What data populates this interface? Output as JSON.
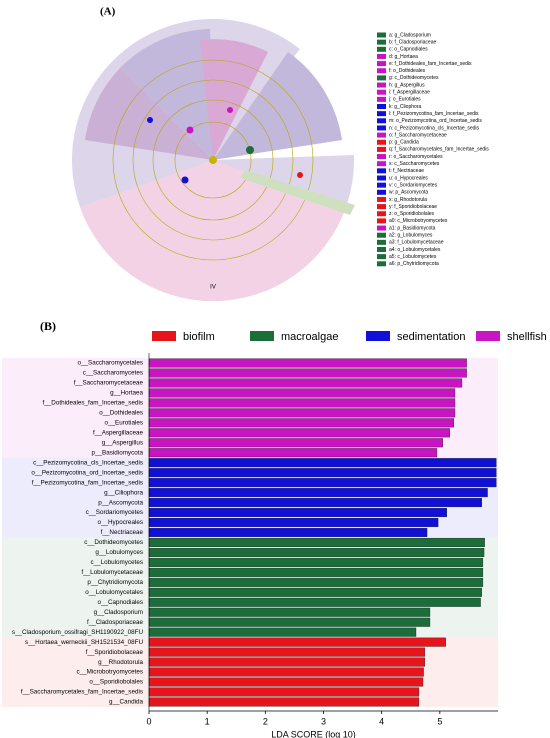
{
  "panel_a": {
    "label": "(A)",
    "clade_label": "IV",
    "legend": [
      {
        "label": "a: g_Cladosporium",
        "color": "#1b6e3a"
      },
      {
        "label": "b: f_Cladosporiaceae",
        "color": "#1b6e3a"
      },
      {
        "label": "c: o_Capnodiales",
        "color": "#1b6e3a"
      },
      {
        "label": "d: g_Hortaea",
        "color": "#c914c4"
      },
      {
        "label": "e: f_Dothideales_fam_Incertae_sedis",
        "color": "#c914c4"
      },
      {
        "label": "f: o_Dothideales",
        "color": "#c914c4"
      },
      {
        "label": "g: c_Dothideomycetes",
        "color": "#1b6e3a"
      },
      {
        "label": "h: g_Aspergillus",
        "color": "#c914c4"
      },
      {
        "label": "i: f_Aspergillaceae",
        "color": "#c914c4"
      },
      {
        "label": "j: o_Eurotiales",
        "color": "#c914c4"
      },
      {
        "label": "k: g_Cliophora",
        "color": "#1010d8"
      },
      {
        "label": "l: f_Pezizomycotina_fam_Incertae_sedis",
        "color": "#1010d8"
      },
      {
        "label": "m: o_Pezizomycotina_ord_Incertae_sedis",
        "color": "#1010d8"
      },
      {
        "label": "n: c_Pezizomycotina_cls_Incertae_sedis",
        "color": "#1010d8"
      },
      {
        "label": "o: f_Saccharomycetaceae",
        "color": "#c914c4"
      },
      {
        "label": "p: g_Candida",
        "color": "#e8141b"
      },
      {
        "label": "q: f_Saccharomycetales_fam_Incertae_sedis",
        "color": "#e8141b"
      },
      {
        "label": "r: o_Saccharomycetales",
        "color": "#c914c4"
      },
      {
        "label": "s: c_Saccharomycetes",
        "color": "#c914c4"
      },
      {
        "label": "t: f_Nectriaceae",
        "color": "#1010d8"
      },
      {
        "label": "u: o_Hypocreales",
        "color": "#1010d8"
      },
      {
        "label": "v: c_Sordariomycetes",
        "color": "#1010d8"
      },
      {
        "label": "w: p_Ascomycota",
        "color": "#1010d8"
      },
      {
        "label": "x: g_Rhodotorula",
        "color": "#e8141b"
      },
      {
        "label": "y: f_Sporidiobolaceae",
        "color": "#e8141b"
      },
      {
        "label": "z: o_Sporidiobolales",
        "color": "#e8141b"
      },
      {
        "label": "a0: c_Microbotryomycetes",
        "color": "#e8141b"
      },
      {
        "label": "a1: p_Basidiomycota",
        "color": "#c914c4"
      },
      {
        "label": "a2: g_Lobulomyces",
        "color": "#1b6e3a"
      },
      {
        "label": "a3: f_Lobulomycetaceae",
        "color": "#1b6e3a"
      },
      {
        "label": "a4: o_Lobulomycetales",
        "color": "#1b6e3a"
      },
      {
        "label": "a5: c_Lobulomycetes",
        "color": "#1b6e3a"
      },
      {
        "label": "a6: p_Chytridiomycota",
        "color": "#1b6e3a"
      }
    ]
  },
  "chart_data": {
    "type": "barh",
    "panel_label": "(B)",
    "xlabel": "LDA SCORE (log 10)",
    "xlim": [
      0,
      6
    ],
    "xticks": [
      0,
      1,
      2,
      3,
      4,
      5
    ],
    "series": [
      {
        "name": "biofilm",
        "color": "#e8141b",
        "categories": [
          "s__Hortaea_werneckii_SH1521534_08FU",
          "f__Sporidiobolaceae",
          "g__Rhodotorula",
          "c__Microbotryomycetes",
          "o__Sporidiobolales",
          "f__Saccharomycetales_fam_Incertae_sedis",
          "g__Candida"
        ],
        "values": [
          5.1,
          4.74,
          4.74,
          4.72,
          4.71,
          4.64,
          4.64
        ]
      },
      {
        "name": "macroalgae",
        "color": "#1b6e3a",
        "categories": [
          "c__Dothideomycetes",
          "g__Lobulomyces",
          "c__Lobulomycetes",
          "f__Lobulomycetaceae",
          "p__Chytridiomycota",
          "o__Lobulomycetales",
          "o__Capnodiales",
          "g__Cladosporium",
          "f__Cladosporiaceae",
          "s__Cladosporium_ossifragi_SH1190922_08FU"
        ],
        "values": [
          5.77,
          5.76,
          5.74,
          5.74,
          5.74,
          5.72,
          5.7,
          4.83,
          4.83,
          4.59
        ]
      },
      {
        "name": "sedimentation",
        "color": "#1010d8",
        "categories": [
          "c__Pezizomycotina_cls_Incertae_sedis",
          "o__Pezizomycotina_ord_Incertae_sedis",
          "f__Pezizomycotina_fam_Incertae_sedis",
          "g__Ciliophora",
          "p__Ascomycota",
          "c__Sordariomycetes",
          "o__Hypocreales",
          "f__Nectriaceae"
        ],
        "values": [
          5.97,
          5.97,
          5.97,
          5.82,
          5.72,
          5.12,
          4.97,
          4.78
        ]
      },
      {
        "name": "shellfish",
        "color": "#c914c4",
        "categories": [
          "o__Saccharomycetales",
          "c__Saccharomycetes",
          "f__Saccharomycetaceae",
          "g__Hortaea",
          "f__Dothideales_fam_Incertae_sedis",
          "o__Dothideales",
          "o__Eurotiales",
          "f__Aspergillaceae",
          "g__Aspergillus",
          "p__Basidiomycota"
        ],
        "values": [
          5.46,
          5.46,
          5.38,
          5.26,
          5.26,
          5.26,
          5.24,
          5.17,
          5.05,
          4.95
        ]
      }
    ]
  }
}
